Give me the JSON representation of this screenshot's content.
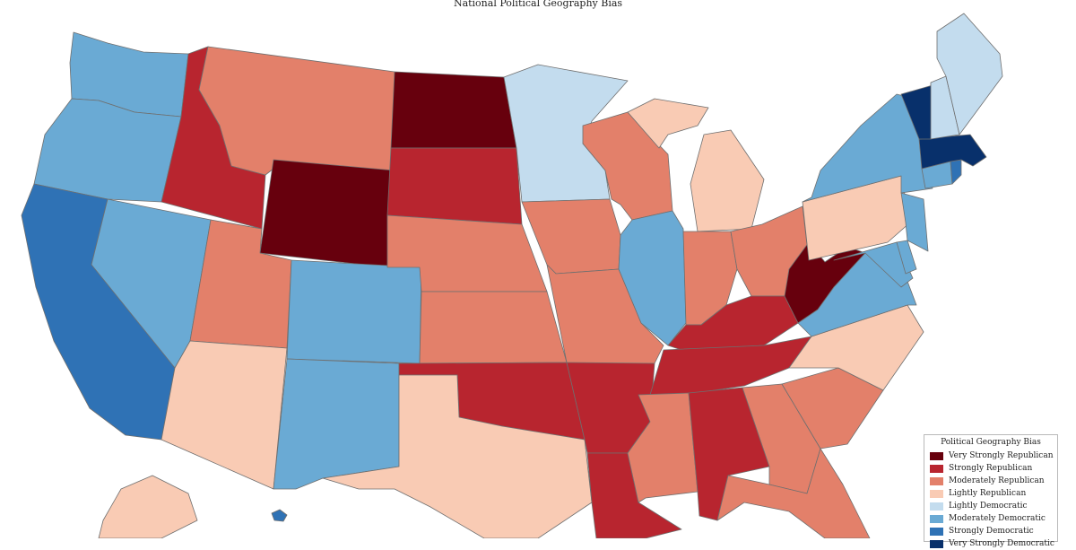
{
  "title": "National Political Geography Bias",
  "legend": {
    "title": "Political Geography Bias",
    "items": [
      {
        "key": "vsr",
        "label": "Very Strongly Republican",
        "color": "#67000d"
      },
      {
        "key": "sr",
        "label": "Strongly Republican",
        "color": "#b8252f"
      },
      {
        "key": "mr",
        "label": "Moderately Republican",
        "color": "#e3806a"
      },
      {
        "key": "lr",
        "label": "Lightly Republican",
        "color": "#f9cbb4"
      },
      {
        "key": "ld",
        "label": "Lightly Democratic",
        "color": "#c3dcee"
      },
      {
        "key": "md",
        "label": "Moderately Democratic",
        "color": "#6aaad4"
      },
      {
        "key": "sd",
        "label": "Strongly Democratic",
        "color": "#2f72b5"
      },
      {
        "key": "vsd",
        "label": "Very Strongly Democratic",
        "color": "#08306b"
      }
    ]
  },
  "states": {
    "washington": "md",
    "oregon": "md",
    "california": "sd",
    "nevada": "md",
    "idaho": "sr",
    "montana": "mr",
    "wyoming": "vsr",
    "utah": "mr",
    "arizona": "lr",
    "colorado": "md",
    "new-mexico": "md",
    "north-dakota": "vsr",
    "south-dakota": "sr",
    "nebraska": "mr",
    "kansas": "mr",
    "oklahoma": "sr",
    "texas": "lr",
    "minnesota": "ld",
    "iowa": "mr",
    "missouri": "mr",
    "arkansas": "sr",
    "louisiana": "sr",
    "wisconsin": "mr",
    "illinois": "md",
    "michigan": "lr",
    "indiana": "mr",
    "ohio": "mr",
    "kentucky": "sr",
    "tennessee": "sr",
    "mississippi": "mr",
    "alabama": "sr",
    "georgia": "mr",
    "florida": "mr",
    "south-carolina": "mr",
    "north-carolina": "lr",
    "virginia": "md",
    "west-virginia": "vsr",
    "maryland": "md",
    "delaware": "md",
    "new-jersey": "md",
    "pennsylvania": "lr",
    "new-york": "md",
    "connecticut": "md",
    "rhode-island": "sd",
    "massachusetts": "vsd",
    "vermont": "vsd",
    "new-hampshire": "ld",
    "maine": "ld",
    "alaska": "lr",
    "hawaii": "sd"
  }
}
